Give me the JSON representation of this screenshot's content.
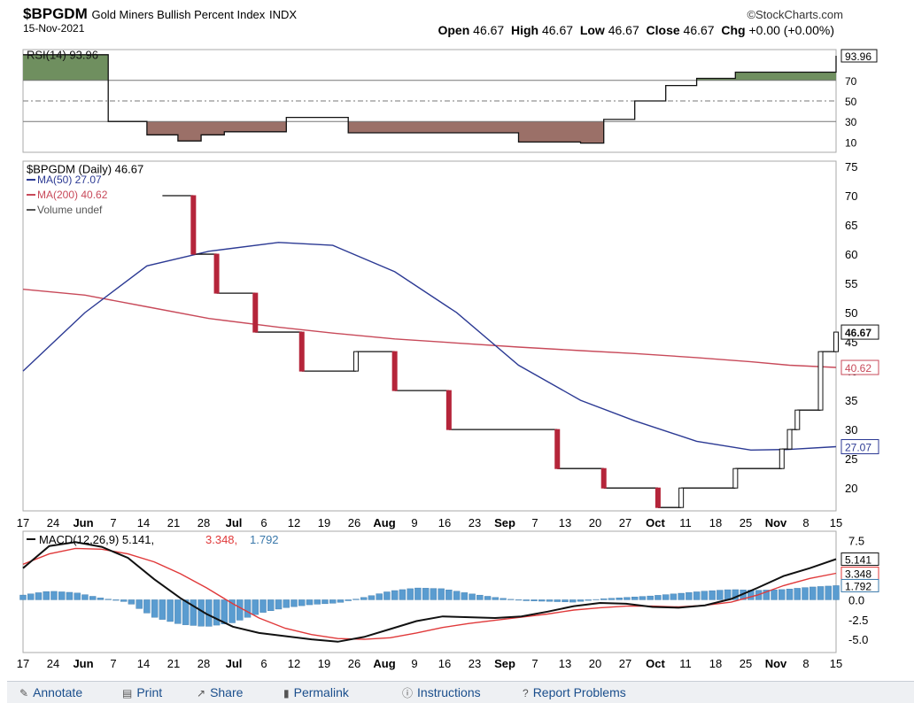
{
  "header": {
    "symbol": "$BPGDM",
    "name": "Gold Miners Bullish Percent Index",
    "exchange": "INDX",
    "date": "15-Nov-2021",
    "brand": "©StockCharts.com",
    "open_label": "Open",
    "open": "46.67",
    "high_label": "High",
    "high": "46.67",
    "low_label": "Low",
    "low": "46.67",
    "close_label": "Close",
    "close": "46.67",
    "chg_label": "Chg",
    "chg": "+0.00 (+0.00%)"
  },
  "toolbar": {
    "annotate": "Annotate",
    "print": "Print",
    "share": "Share",
    "permalink": "Permalink",
    "instructions": "Instructions",
    "report": "Report Problems"
  },
  "colors": {
    "bull": "#6f8f5f",
    "bear": "#9b7068",
    "down_bar": "#b5253a",
    "ma50": "#2c3a94",
    "ma200": "#c84a5a",
    "hist": "#5a9cd0",
    "macd": "#111111",
    "signal": "#e0393a"
  },
  "chart_data": [
    {
      "type": "line",
      "title": "RSI(14) 93.96",
      "ylim": [
        0,
        100
      ],
      "ticks": [
        "10",
        "30",
        "50",
        "70",
        "93.96"
      ],
      "tick_values": [
        10,
        30,
        50,
        70,
        93.96
      ],
      "last_value": "93.96",
      "x": [
        "Jun 16",
        "Jun 21",
        "Jul 1",
        "Jul 8",
        "Jul 13",
        "Jul 15",
        "Jul 26",
        "Aug 9",
        "Sep 16",
        "Oct 4",
        "Oct 11",
        "Oct 18",
        "Oct 22",
        "Nov 1",
        "Nov 9",
        "Nov 15"
      ],
      "values": [
        95,
        30,
        17,
        11,
        17,
        20,
        34,
        19,
        10,
        9,
        32,
        50,
        65,
        72,
        78,
        93.96
      ]
    },
    {
      "type": "line",
      "title": "$BPGDM (Daily) 46.67",
      "ylim": [
        17,
        75
      ],
      "y_ticks": [
        "20",
        "25",
        "30",
        "35",
        "40",
        "45",
        "50",
        "55",
        "60",
        "65",
        "70",
        "75"
      ],
      "y_tick_values": [
        20,
        25,
        30,
        35,
        40,
        45,
        50,
        55,
        60,
        65,
        70,
        75
      ],
      "x_ticks": [
        "17",
        "24",
        "Jun",
        "7",
        "14",
        "21",
        "28",
        "Jul",
        "6",
        "12",
        "19",
        "26",
        "Aug",
        "9",
        "16",
        "23",
        "Sep",
        "7",
        "13",
        "20",
        "27",
        "Oct",
        "11",
        "18",
        "25",
        "Nov",
        "8",
        "15"
      ],
      "series": [
        {
          "name": "$BPGDM",
          "values": [
            70,
            60,
            53.33,
            46.67,
            40,
            43.33,
            36.67,
            30,
            23.33,
            20,
            16.67,
            20,
            23.33,
            26.67,
            30,
            33.33,
            43.33,
            46.67
          ]
        },
        {
          "name": "MA(50) 27.07",
          "values": [
            40,
            50,
            58,
            60.5,
            62,
            61.5,
            57,
            50,
            41,
            35,
            31.5,
            28,
            26.5,
            26.6,
            27.07
          ]
        },
        {
          "name": "MA(200) 40.62",
          "values": [
            54,
            53,
            51,
            49,
            47.5,
            46.5,
            45.5,
            44.8,
            44.1,
            43.5,
            43,
            42.3,
            41.6,
            41,
            40.62
          ]
        },
        {
          "name": "Volume undef",
          "values": []
        }
      ],
      "markers": [
        "46.67",
        "40.62",
        "27.07"
      ]
    },
    {
      "type": "line",
      "title": "MACD(12,26,9)",
      "macd_value": "5.141",
      "signal_value": "3.348",
      "hist_value": "1.792",
      "ylim": [
        -6,
        8
      ],
      "y_ticks": [
        "-5.0",
        "-2.5",
        "0.0",
        "2.5",
        "5.0",
        "7.5"
      ],
      "y_tick_values": [
        -5,
        -2.5,
        0,
        2.5,
        5,
        7.5
      ],
      "series": [
        {
          "name": "MACD",
          "values": [
            4.0,
            6.8,
            7.3,
            6.7,
            5.3,
            2.6,
            0.2,
            -1.8,
            -3.4,
            -4.2,
            -4.6,
            -5.0,
            -5.3,
            -4.7,
            -3.7,
            -2.7,
            -2.1,
            -2.2,
            -2.3,
            -2.1,
            -1.5,
            -0.8,
            -0.4,
            -0.5,
            -0.9,
            -1.0,
            -0.7,
            0.1,
            1.5,
            3.0,
            4.0,
            5.141
          ]
        },
        {
          "name": "Signal",
          "values": [
            4.5,
            5.8,
            6.5,
            6.4,
            5.8,
            4.8,
            3.3,
            1.5,
            -0.5,
            -2.3,
            -3.6,
            -4.4,
            -4.9,
            -5.0,
            -4.8,
            -4.2,
            -3.5,
            -3.0,
            -2.6,
            -2.2,
            -1.8,
            -1.3,
            -1.0,
            -0.8,
            -0.8,
            -0.9,
            -0.7,
            -0.3,
            0.6,
            1.8,
            2.7,
            3.348
          ]
        },
        {
          "name": "Histogram",
          "values": [
            0.6,
            1.1,
            0.9,
            0.2,
            -0.3,
            -2.2,
            -3.1,
            -3.4,
            -2.9,
            -1.7,
            -1.0,
            -0.6,
            -0.4,
            0.3,
            1.1,
            1.5,
            1.4,
            0.8,
            0.3,
            -0.1,
            -0.2,
            -0.3,
            0.1,
            0.3,
            0.5,
            0.8,
            1.1,
            1.3,
            1.2,
            1.3,
            1.6,
            1.792
          ]
        }
      ]
    }
  ]
}
